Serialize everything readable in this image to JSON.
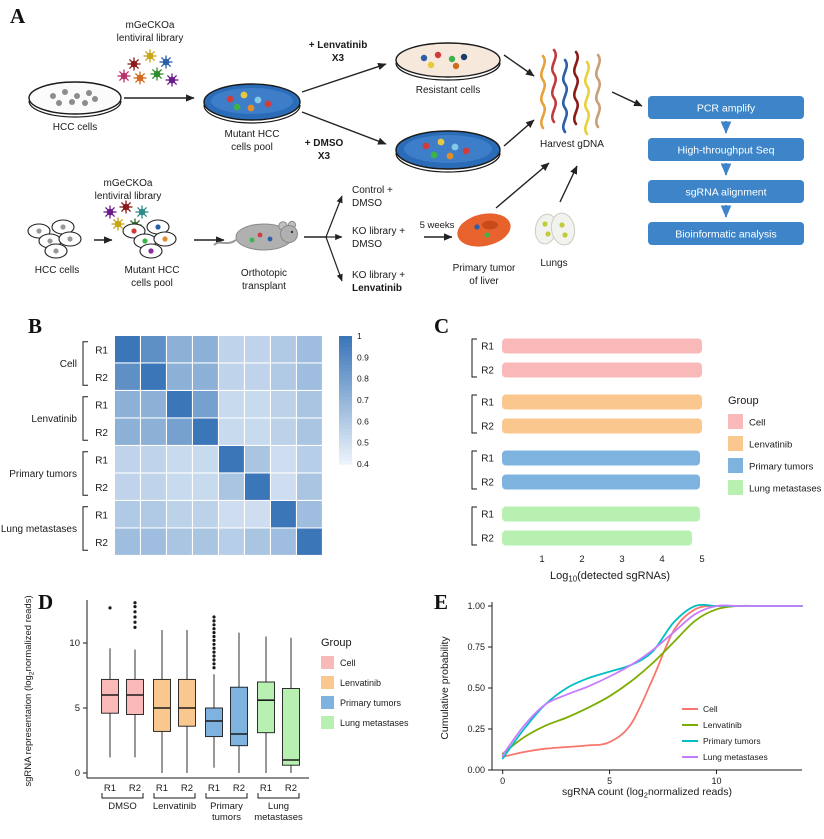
{
  "figure": {
    "panel_labels": {
      "A": "A",
      "B": "B",
      "C": "C",
      "D": "D",
      "E": "E"
    }
  },
  "colors": {
    "group_fills": {
      "Cell": "#F9B9B9",
      "Lenvatinib": "#FAC78E",
      "Primary tumors": "#7EB3E0",
      "Lung metastases": "#B7F0B1"
    },
    "line_colors": {
      "Cell": "#F8766D",
      "Lenvatinib": "#7CAE00",
      "Primary tumors": "#00BFC4",
      "Lung metastases": "#C77CFF"
    },
    "flow_box_fill": "#3D85C8",
    "dish_blue": "#2B6CB8"
  },
  "panelA": {
    "lib_top_l1": "mGeCKOa",
    "lib_top_l2": "lentiviral library",
    "hcc_top": "HCC cells",
    "mutant_top_l1": "Mutant HCC",
    "mutant_top_l2": "cells pool",
    "lenv_l1": "+ Lenvatinib",
    "lenv_l2": "X3",
    "resistant": "Resistant cells",
    "dmso_l1": "+ DMSO",
    "dmso_l2": "X3",
    "harvest": "Harvest gDNA",
    "flow1": "PCR amplify",
    "flow2": "High-throughput Seq",
    "flow3": "sgRNA alignment",
    "flow4": "Bioinformatic analysis",
    "lib_bot_l1": "mGeCKOa",
    "lib_bot_l2": "lentiviral library",
    "hcc_bot": "HCC cells",
    "mutant_bot_l1": "Mutant HCC",
    "mutant_bot_l2": "cells pool",
    "ortho_l1": "Orthotopic",
    "ortho_l2": "transplant",
    "ctrl_l1": "Control +",
    "ctrl_l2": "DMSO",
    "ko1_l1": "KO library +",
    "ko1_l2": "DMSO",
    "ko2_l1": "KO library +",
    "ko2_l2": "Lenvatinib",
    "weeks": "5 weeks",
    "tumor_l1": "Primary tumor",
    "tumor_l2": "of liver",
    "lungs": "Lungs"
  },
  "chart_data": [
    {
      "type": "heatmap",
      "panel": "B",
      "row_groups": [
        {
          "name": "Cell",
          "rows": [
            "R1",
            "R2"
          ]
        },
        {
          "name": "Lenvatinib",
          "rows": [
            "R1",
            "R2"
          ]
        },
        {
          "name": "Primary tumors",
          "rows": [
            "R1",
            "R2"
          ]
        },
        {
          "name": "Lung metastases",
          "rows": [
            "R1",
            "R2"
          ]
        }
      ],
      "matrix": [
        [
          1.0,
          0.88,
          0.72,
          0.72,
          0.55,
          0.55,
          0.6,
          0.66
        ],
        [
          0.88,
          1.0,
          0.72,
          0.72,
          0.55,
          0.55,
          0.6,
          0.66
        ],
        [
          0.72,
          0.72,
          1.0,
          0.8,
          0.52,
          0.52,
          0.56,
          0.62
        ],
        [
          0.72,
          0.72,
          0.8,
          1.0,
          0.52,
          0.52,
          0.56,
          0.62
        ],
        [
          0.55,
          0.55,
          0.52,
          0.52,
          1.0,
          0.62,
          0.5,
          0.58
        ],
        [
          0.55,
          0.55,
          0.52,
          0.52,
          0.62,
          1.0,
          0.5,
          0.62
        ],
        [
          0.6,
          0.6,
          0.56,
          0.56,
          0.5,
          0.5,
          1.0,
          0.66
        ],
        [
          0.66,
          0.66,
          0.62,
          0.62,
          0.58,
          0.62,
          0.66,
          1.0
        ]
      ],
      "color_low": "#EBF3FB",
      "color_high": "#3B76B8",
      "colorbar": {
        "min": 0.4,
        "max": 1.0,
        "tick_labels": [
          "1",
          "0.9",
          "0.8",
          "0.7",
          "0.6",
          "0.5",
          "0.4"
        ]
      }
    },
    {
      "type": "bar",
      "panel": "C",
      "orientation": "horizontal",
      "xlabel_parts": [
        [
          "Log",
          false
        ],
        [
          "10",
          true
        ],
        [
          "(detected  sgRNAs)",
          false
        ]
      ],
      "xlim": [
        0,
        5.4
      ],
      "xticks": [
        1,
        2,
        3,
        4,
        5
      ],
      "bars": [
        {
          "label": "R1",
          "group": "Cell",
          "value": 5.0
        },
        {
          "label": "R2",
          "group": "Cell",
          "value": 5.0
        },
        {
          "label": "R1",
          "group": "Lenvatinib",
          "value": 5.0
        },
        {
          "label": "R2",
          "group": "Lenvatinib",
          "value": 5.0
        },
        {
          "label": "R1",
          "group": "Primary tumors",
          "value": 4.95
        },
        {
          "label": "R2",
          "group": "Primary tumors",
          "value": 4.95
        },
        {
          "label": "R1",
          "group": "Lung metastases",
          "value": 4.95
        },
        {
          "label": "R2",
          "group": "Lung metastases",
          "value": 4.75
        }
      ],
      "legend_title": "Group",
      "legend": [
        "Cell",
        "Lenvatinib",
        "Primary tumors",
        "Lung metastases"
      ]
    },
    {
      "type": "box",
      "panel": "D",
      "ylabel_parts": [
        [
          "sgRNA representation (log",
          false
        ],
        [
          "2",
          true
        ],
        [
          "normalized reads)",
          false
        ]
      ],
      "ylim": [
        -0.5,
        13.5
      ],
      "yticks": [
        0,
        5,
        10
      ],
      "x_groups": [
        {
          "name_lines": [
            "DMSO"
          ]
        },
        {
          "name_lines": [
            "Lenvatinib"
          ]
        },
        {
          "name_lines": [
            "Primary",
            "tumors"
          ]
        },
        {
          "name_lines": [
            "Lung",
            "metastases"
          ]
        }
      ],
      "boxes": [
        {
          "label": "R1",
          "color_group": "Cell",
          "low": 1.2,
          "q1": 4.6,
          "median": 6.0,
          "q3": 7.2,
          "high": 9.6,
          "outliers": [
            12.7
          ]
        },
        {
          "label": "R2",
          "color_group": "Cell",
          "low": 1.2,
          "q1": 4.5,
          "median": 6.0,
          "q3": 7.2,
          "high": 9.5,
          "outliers": [
            11.2,
            11.6,
            12.0,
            12.4,
            12.8,
            13.1
          ]
        },
        {
          "label": "R1",
          "color_group": "Lenvatinib",
          "low": 0.0,
          "q1": 3.2,
          "median": 5.0,
          "q3": 7.2,
          "high": 11.0,
          "outliers": []
        },
        {
          "label": "R2",
          "color_group": "Lenvatinib",
          "low": 0.0,
          "q1": 3.6,
          "median": 5.0,
          "q3": 7.2,
          "high": 11.0,
          "outliers": []
        },
        {
          "label": "R1",
          "color_group": "Primary tumors",
          "low": 0.4,
          "q1": 2.8,
          "median": 4.0,
          "q3": 5.0,
          "high": 7.6,
          "outliers": [
            8.1,
            8.4,
            8.7,
            9.0,
            9.3,
            9.6,
            9.9,
            10.2,
            10.5,
            10.8,
            11.1,
            11.4,
            11.7,
            12.0
          ]
        },
        {
          "label": "R2",
          "color_group": "Primary tumors",
          "low": 0.0,
          "q1": 2.1,
          "median": 3.0,
          "q3": 6.6,
          "high": 10.8,
          "outliers": []
        },
        {
          "label": "R1",
          "color_group": "Lung metastases",
          "low": 0.0,
          "q1": 3.1,
          "median": 5.6,
          "q3": 7.0,
          "high": 10.5,
          "outliers": []
        },
        {
          "label": "R2",
          "color_group": "Lung metastases",
          "low": 0.0,
          "q1": 0.6,
          "median": 1.0,
          "q3": 6.5,
          "high": 10.4,
          "outliers": []
        }
      ],
      "legend_title": "Group",
      "legend": [
        "Cell",
        "Lenvatinib",
        "Primary tumors",
        "Lung metastases"
      ]
    },
    {
      "type": "line",
      "panel": "E",
      "ylabel": "Cumulative probability",
      "xlabel_parts": [
        [
          "sgRNA count (log",
          false
        ],
        [
          "2",
          true
        ],
        [
          "normalized reads)",
          false
        ]
      ],
      "xlim": [
        -0.5,
        14
      ],
      "ylim": [
        0,
        1.05
      ],
      "xticks": [
        0,
        5,
        10
      ],
      "yticks": [
        0,
        0.25,
        0.5,
        0.75,
        1
      ],
      "ytick_labels": [
        "0.00",
        "0.25",
        "0.50",
        "0.75",
        "1.00"
      ],
      "x": [
        0,
        1,
        2,
        3,
        4,
        5,
        6,
        7,
        8,
        9,
        10,
        11,
        12,
        13,
        14
      ],
      "series": [
        {
          "name": "Cell",
          "values": [
            0.08,
            0.11,
            0.13,
            0.14,
            0.15,
            0.17,
            0.28,
            0.55,
            0.85,
            0.98,
            1.0,
            1.0,
            1.0,
            1.0,
            1.0
          ]
        },
        {
          "name": "Lenvatinib",
          "values": [
            0.1,
            0.2,
            0.27,
            0.32,
            0.38,
            0.45,
            0.54,
            0.65,
            0.78,
            0.91,
            0.98,
            1.0,
            1.0,
            1.0,
            1.0
          ]
        },
        {
          "name": "Primary tumors",
          "values": [
            0.07,
            0.25,
            0.4,
            0.5,
            0.56,
            0.6,
            0.64,
            0.72,
            0.9,
            1.0,
            1.0,
            1.0,
            1.0,
            1.0,
            1.0
          ]
        },
        {
          "name": "Lung metastases",
          "values": [
            0.09,
            0.27,
            0.4,
            0.46,
            0.51,
            0.57,
            0.64,
            0.73,
            0.84,
            0.95,
            1.0,
            1.0,
            1.0,
            1.0,
            1.0
          ]
        }
      ],
      "legend": [
        "Cell",
        "Lenvatinib",
        "Primary tumors",
        "Lung metastases"
      ]
    }
  ]
}
